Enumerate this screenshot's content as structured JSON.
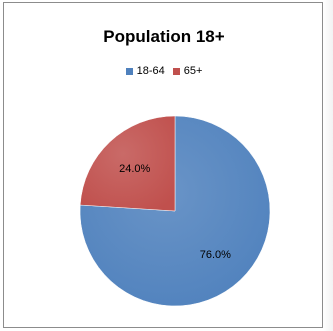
{
  "chart_data": {
    "type": "pie",
    "title": "Population 18+",
    "legend_position": "top",
    "slices": [
      {
        "name": "18-64",
        "value": 76.0,
        "label": "76.0%",
        "color": "#4f81bd"
      },
      {
        "name": "65+",
        "value": 24.0,
        "label": "24.0%",
        "color": "#c0504d"
      }
    ]
  }
}
